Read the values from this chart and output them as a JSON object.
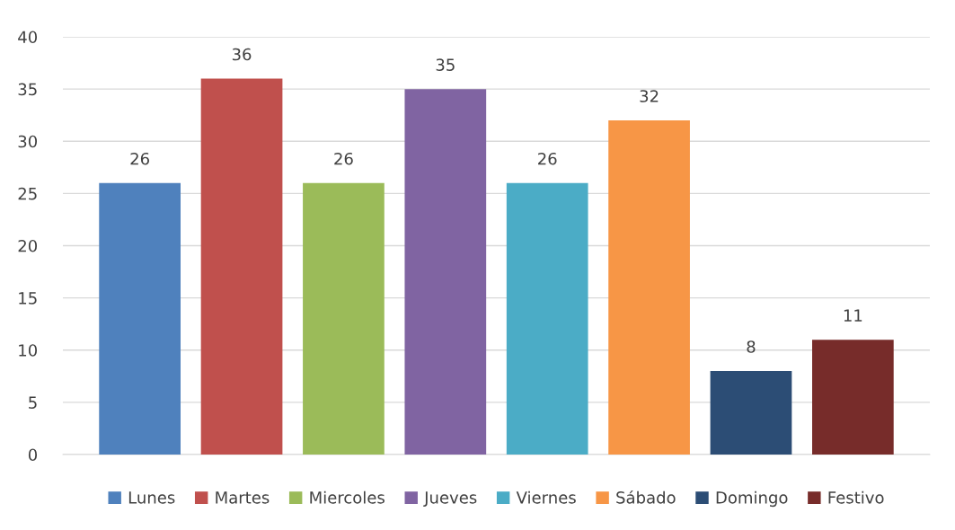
{
  "chart_data": {
    "type": "bar",
    "categories": [
      null
    ],
    "series": [
      {
        "name": "Lunes",
        "color": "#4f81bd",
        "values": [
          26
        ]
      },
      {
        "name": "Martes",
        "color": "#c0504d",
        "values": [
          36
        ]
      },
      {
        "name": "Miercoles",
        "color": "#9bbb59",
        "values": [
          26
        ]
      },
      {
        "name": "Jueves",
        "color": "#8064a2",
        "values": [
          35
        ]
      },
      {
        "name": "Viernes",
        "color": "#4bacc6",
        "values": [
          26
        ]
      },
      {
        "name": "Sábado",
        "color": "#f79646",
        "values": [
          32
        ]
      },
      {
        "name": "Domingo",
        "color": "#2c4d75",
        "values": [
          8
        ]
      },
      {
        "name": "Festivo",
        "color": "#772c2a",
        "values": [
          11
        ]
      }
    ],
    "ylim": [
      0,
      40
    ],
    "yticks": [
      0,
      5,
      10,
      15,
      20,
      25,
      30,
      35,
      40
    ],
    "grid": "y",
    "legend": "bottom",
    "data_labels": true
  }
}
